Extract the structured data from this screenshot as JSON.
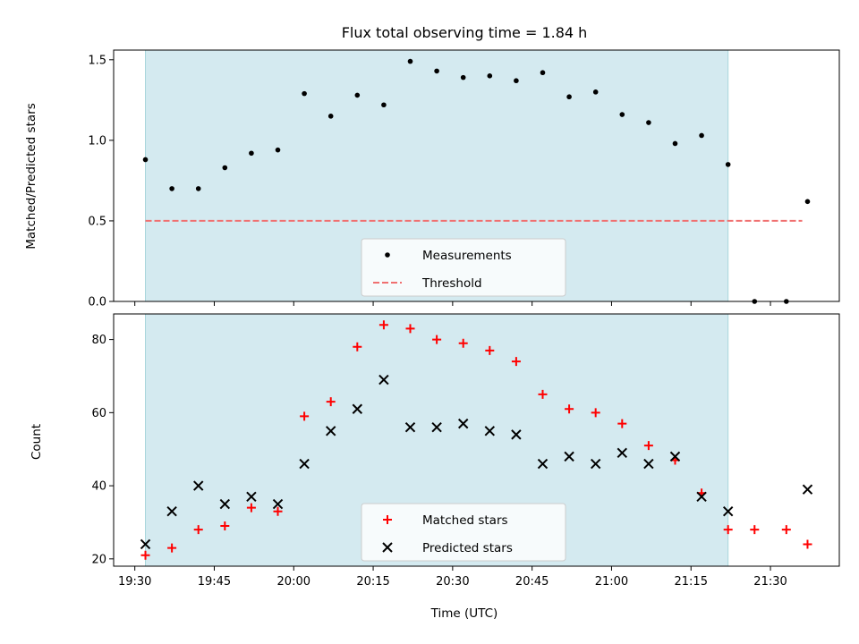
{
  "chart_data": [
    {
      "type": "scatter",
      "title": "Flux total observing time = 1.84 h",
      "xlabel": "",
      "ylabel": "Matched/Predicted stars",
      "xlim": [
        "19:26",
        "21:43"
      ],
      "ylim": [
        0,
        1.56
      ],
      "yticks": [
        "0.0",
        "0.5",
        "1.0",
        "1.5"
      ],
      "grid": false,
      "legend_position": "bottom-center",
      "shaded_interval": {
        "start": "19:32",
        "end": "21:22",
        "color": "#d4eaf0"
      },
      "series": [
        {
          "name": "Measurements",
          "marker": "dot",
          "color": "#000000",
          "x": [
            "19:32",
            "19:37",
            "19:42",
            "19:47",
            "19:52",
            "19:57",
            "20:02",
            "20:07",
            "20:12",
            "20:17",
            "20:22",
            "20:27",
            "20:32",
            "20:37",
            "20:42",
            "20:47",
            "20:52",
            "20:57",
            "21:02",
            "21:07",
            "21:12",
            "21:17",
            "21:22",
            "21:27",
            "21:33",
            "21:37"
          ],
          "y": [
            0.88,
            0.7,
            0.7,
            0.83,
            0.92,
            0.94,
            1.29,
            1.15,
            1.28,
            1.22,
            1.49,
            1.43,
            1.39,
            1.4,
            1.37,
            1.42,
            1.27,
            1.3,
            1.16,
            1.11,
            0.98,
            1.03,
            0.85,
            0.0,
            0.0,
            0.62
          ]
        },
        {
          "name": "Threshold",
          "marker": "dashed-line",
          "color": "#f07070",
          "x": [
            "19:32",
            "21:36"
          ],
          "y": [
            0.5,
            0.5
          ]
        }
      ]
    },
    {
      "type": "scatter",
      "title": "",
      "xlabel": "Time (UTC)",
      "ylabel": "Count",
      "xlim": [
        "19:26",
        "21:43"
      ],
      "ylim": [
        18,
        87
      ],
      "yticks": [
        "20",
        "40",
        "60",
        "80"
      ],
      "xticks": [
        "19:30",
        "19:45",
        "20:00",
        "20:15",
        "20:30",
        "20:45",
        "21:00",
        "21:15",
        "21:30"
      ],
      "grid": false,
      "legend_position": "bottom-center",
      "shaded_interval": {
        "start": "19:32",
        "end": "21:22",
        "color": "#d4eaf0"
      },
      "series": [
        {
          "name": "Matched stars",
          "marker": "plus",
          "color": "#ff0000",
          "x": [
            "19:32",
            "19:37",
            "19:42",
            "19:47",
            "19:52",
            "19:57",
            "20:02",
            "20:07",
            "20:12",
            "20:17",
            "20:22",
            "20:27",
            "20:32",
            "20:37",
            "20:42",
            "20:47",
            "20:52",
            "20:57",
            "21:02",
            "21:07",
            "21:12",
            "21:17",
            "21:22",
            "21:27",
            "21:33",
            "21:37"
          ],
          "y": [
            21,
            23,
            28,
            29,
            34,
            33,
            59,
            63,
            78,
            84,
            83,
            80,
            79,
            77,
            74,
            65,
            61,
            60,
            57,
            51,
            47,
            38,
            28,
            28,
            28,
            24
          ]
        },
        {
          "name": "Predicted stars",
          "marker": "x",
          "color": "#000000",
          "x": [
            "19:32",
            "19:37",
            "19:42",
            "19:47",
            "19:52",
            "19:57",
            "20:02",
            "20:07",
            "20:12",
            "20:17",
            "20:22",
            "20:27",
            "20:32",
            "20:37",
            "20:42",
            "20:47",
            "20:52",
            "20:57",
            "21:02",
            "21:07",
            "21:12",
            "21:17",
            "21:22",
            "21:37"
          ],
          "y": [
            24,
            33,
            40,
            35,
            37,
            35,
            46,
            55,
            61,
            69,
            56,
            56,
            57,
            55,
            54,
            46,
            48,
            46,
            49,
            46,
            48,
            37,
            33,
            39
          ]
        }
      ]
    }
  ]
}
